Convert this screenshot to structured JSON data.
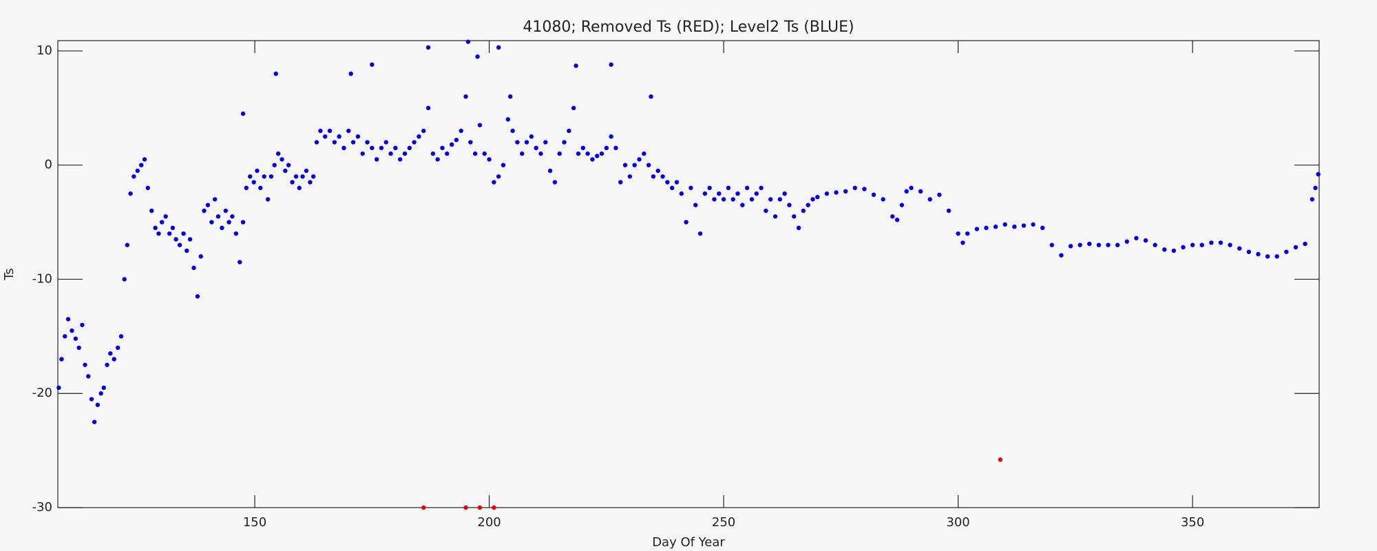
{
  "chart_data": {
    "type": "scatter",
    "title": "41080; Removed Ts (RED); Level2 Ts (BLUE)",
    "xlabel": "Day Of Year",
    "ylabel": "Ts",
    "xlim": [
      108,
      377
    ],
    "xticks": [
      150,
      200,
      250,
      300,
      350
    ],
    "ylim": [
      -30,
      10.9
    ],
    "yticks": [
      -30,
      -20,
      -10,
      0,
      10
    ],
    "series": [
      {
        "color": "#0000ee",
        "x": [
          108.2,
          108.8,
          109.5,
          110.2,
          111,
          111.8,
          112.5,
          113.2,
          113.8,
          114.5,
          115.2,
          115.8,
          116.5,
          117.2,
          117.8,
          118.5,
          119.2,
          120,
          120.8,
          121.5,
          122.2,
          122.8,
          123.5,
          124.2,
          125,
          125.8,
          126.5,
          127.2,
          128,
          128.8,
          129.5,
          130.2,
          131,
          131.8,
          132.5,
          133.2,
          134,
          134.8,
          135.5,
          136.2,
          137,
          137.8,
          138.5,
          139.2,
          140,
          140.8,
          141.5,
          142.2,
          143,
          143.8,
          144.5,
          145.2,
          146,
          146.8,
          147.5,
          148.2,
          149,
          149.8,
          150.5,
          151.2,
          152,
          152.8,
          153.5,
          154.2,
          155,
          155.8,
          156.5,
          157.2,
          158,
          158.8,
          159.5,
          160.2,
          161,
          161.8,
          162.5,
          163.2,
          164,
          165,
          166,
          167,
          168,
          169,
          170,
          171,
          172,
          173,
          174,
          175,
          176,
          177,
          178,
          179,
          180,
          181,
          182,
          183,
          184,
          185,
          186,
          187,
          188,
          189,
          190,
          191,
          192,
          193,
          194,
          195,
          196,
          197,
          198,
          199,
          200,
          201,
          202,
          203,
          204,
          205,
          206,
          207,
          208,
          209,
          210,
          211,
          212,
          213,
          214,
          215,
          216,
          217,
          218,
          219,
          220,
          221,
          222,
          223,
          224,
          225,
          226,
          227,
          228,
          229,
          230,
          231,
          232,
          233,
          234,
          235,
          236,
          237,
          238,
          239,
          240,
          241,
          242,
          243,
          244,
          245,
          246,
          247,
          248,
          249,
          250,
          251,
          252,
          253,
          254,
          255,
          256,
          257,
          258,
          259,
          260,
          261,
          262,
          263,
          264,
          265,
          266,
          267,
          268,
          269,
          270,
          272,
          274,
          276,
          278,
          280,
          282,
          284,
          286,
          287,
          288,
          289,
          290,
          292,
          294,
          296,
          298,
          300,
          301,
          302,
          304,
          306,
          308,
          310,
          312,
          314,
          316,
          318,
          320,
          322,
          324,
          326,
          328,
          330,
          332,
          334,
          336,
          338,
          340,
          342,
          344,
          346,
          348,
          350,
          352,
          354,
          356,
          358,
          360,
          362,
          364,
          366,
          368,
          370,
          372,
          374,
          375.5,
          376.2,
          376.8,
          187,
          195.5,
          197.5,
          202,
          204.5,
          218.5,
          226,
          234.5,
          154.5,
          175,
          170.5,
          147.5
        ],
        "values": [
          -19.5,
          -17,
          -15,
          -13.5,
          -14.5,
          -15.2,
          -16,
          -14,
          -17.5,
          -18.5,
          -20.5,
          -22.5,
          -21,
          -20,
          -19.5,
          -17.5,
          -16.5,
          -17,
          -16,
          -15,
          -10,
          -7,
          -2.5,
          -1,
          -0.5,
          0,
          0.5,
          -2,
          -4,
          -5.5,
          -6,
          -5,
          -4.5,
          -6,
          -5.5,
          -6.5,
          -7,
          -6,
          -7.5,
          -6.5,
          -9,
          -11.5,
          -8,
          -4,
          -3.5,
          -5,
          -3,
          -4.5,
          -5.5,
          -4,
          -5,
          -4.5,
          -6,
          -8.5,
          -5,
          -2,
          -1,
          -1.5,
          -0.5,
          -2,
          -1,
          -3,
          -1,
          0,
          1,
          0.5,
          -0.5,
          0,
          -1.5,
          -1,
          -2,
          -1,
          -0.5,
          -1.5,
          -1,
          2,
          3,
          2.5,
          3,
          2,
          2.5,
          1.5,
          3,
          2,
          2.5,
          1,
          2,
          1.5,
          0.5,
          1.5,
          2,
          1,
          1.5,
          0.5,
          1,
          1.5,
          2,
          2.5,
          3,
          5,
          1,
          0.5,
          1.5,
          1,
          1.8,
          2.2,
          3,
          6,
          2,
          1,
          3.5,
          1,
          0.5,
          -1.5,
          -1,
          0,
          4,
          3,
          2,
          1,
          2,
          2.5,
          1.5,
          1,
          2,
          -0.5,
          -1.5,
          1,
          2,
          3,
          5,
          1,
          1.5,
          1,
          0.5,
          0.8,
          1,
          1.5,
          2.5,
          1.5,
          -1.5,
          0,
          -1,
          0,
          0.5,
          1,
          0,
          -1,
          -0.5,
          -1,
          -1.5,
          -2,
          -1.5,
          -2.5,
          -5,
          -2,
          -3.5,
          -6,
          -2.5,
          -2,
          -3,
          -2.5,
          -3,
          -2,
          -3,
          -2.5,
          -3.5,
          -2,
          -3,
          -2.5,
          -2,
          -4,
          -3,
          -4.5,
          -3,
          -2.5,
          -3.5,
          -4.5,
          -5.5,
          -4,
          -3.5,
          -3,
          -2.8,
          -2.5,
          -2.4,
          -2.3,
          -2,
          -2.1,
          -2.6,
          -3,
          -4.5,
          -4.8,
          -3.5,
          -2.3,
          -2,
          -2.3,
          -3,
          -2.6,
          -4,
          -6,
          -6.8,
          -6,
          -5.6,
          -5.5,
          -5.4,
          -5.2,
          -5.4,
          -5.3,
          -5.2,
          -5.5,
          -7,
          -7.9,
          -7.1,
          -7,
          -6.9,
          -7,
          -7,
          -7,
          -6.7,
          -6.4,
          -6.6,
          -7,
          -7.4,
          -7.5,
          -7.2,
          -7,
          -7,
          -6.8,
          -6.8,
          -7,
          -7.3,
          -7.6,
          -7.8,
          -8,
          -8,
          -7.6,
          -7.2,
          -6.9,
          -3,
          -2,
          -0.8,
          10.3,
          10.8,
          9.5,
          10.3,
          6,
          8.7,
          8.8,
          6,
          8,
          8.8,
          8,
          4.5
        ]
      },
      {
        "color": "#ee0000",
        "x": [
          186,
          195,
          198,
          201,
          309
        ],
        "values": [
          -30,
          -30,
          -30,
          -30,
          -25.8
        ]
      }
    ]
  }
}
